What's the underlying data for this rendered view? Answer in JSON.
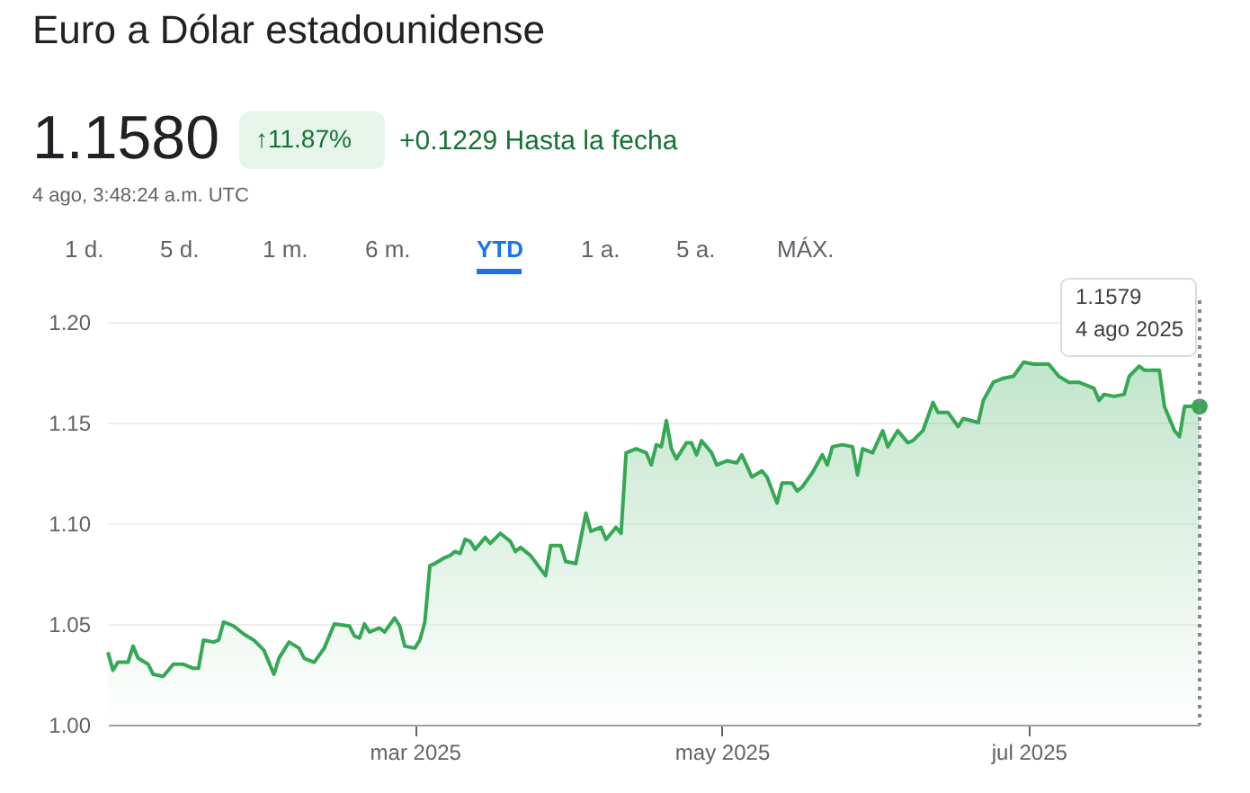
{
  "chart_data": {
    "type": "area",
    "title": "Euro a Dólar estadounidense",
    "x": [
      "2024-12-30",
      "2024-12-31",
      "2025-01-01",
      "2025-01-03",
      "2025-01-04",
      "2025-01-05",
      "2025-01-07",
      "2025-01-08",
      "2025-01-10",
      "2025-01-12",
      "2025-01-14",
      "2025-01-16",
      "2025-01-17",
      "2025-01-18",
      "2025-01-20",
      "2025-01-21",
      "2025-01-22",
      "2025-01-24",
      "2025-01-26",
      "2025-01-28",
      "2025-01-30",
      "2025-02-01",
      "2025-02-02",
      "2025-02-04",
      "2025-02-06",
      "2025-02-07",
      "2025-02-09",
      "2025-02-11",
      "2025-02-13",
      "2025-02-16",
      "2025-02-17",
      "2025-02-18",
      "2025-02-19",
      "2025-02-20",
      "2025-02-22",
      "2025-02-23",
      "2025-02-25",
      "2025-02-26",
      "2025-02-27",
      "2025-03-01",
      "2025-03-02",
      "2025-03-03",
      "2025-03-04",
      "2025-03-05",
      "2025-03-07",
      "2025-03-08",
      "2025-03-09",
      "2025-03-10",
      "2025-03-11",
      "2025-03-12",
      "2025-03-13",
      "2025-03-15",
      "2025-03-16",
      "2025-03-18",
      "2025-03-20",
      "2025-03-21",
      "2025-03-22",
      "2025-03-24",
      "2025-03-27",
      "2025-03-28",
      "2025-03-30",
      "2025-03-31",
      "2025-04-02",
      "2025-04-04",
      "2025-04-05",
      "2025-04-07",
      "2025-04-08",
      "2025-04-10",
      "2025-04-11",
      "2025-04-12",
      "2025-04-14",
      "2025-04-16",
      "2025-04-17",
      "2025-04-18",
      "2025-04-19",
      "2025-04-20",
      "2025-04-21",
      "2025-04-22",
      "2025-04-24",
      "2025-04-25",
      "2025-04-26",
      "2025-04-27",
      "2025-04-29",
      "2025-04-30",
      "2025-05-02",
      "2025-05-04",
      "2025-05-05",
      "2025-05-07",
      "2025-05-09",
      "2025-05-10",
      "2025-05-12",
      "2025-05-13",
      "2025-05-15",
      "2025-05-16",
      "2025-05-17",
      "2025-05-19",
      "2025-05-21",
      "2025-05-22",
      "2025-05-23",
      "2025-05-25",
      "2025-05-27",
      "2025-05-28",
      "2025-05-29",
      "2025-05-31",
      "2025-06-02",
      "2025-06-03",
      "2025-06-05",
      "2025-06-07",
      "2025-06-08",
      "2025-06-10",
      "2025-06-12",
      "2025-06-13",
      "2025-06-15",
      "2025-06-17",
      "2025-06-18",
      "2025-06-21",
      "2025-06-22",
      "2025-06-24",
      "2025-06-26",
      "2025-06-28",
      "2025-06-30",
      "2025-07-02",
      "2025-07-04",
      "2025-07-05",
      "2025-07-07",
      "2025-07-09",
      "2025-07-11",
      "2025-07-14",
      "2025-07-15",
      "2025-07-16",
      "2025-07-18",
      "2025-07-20",
      "2025-07-21",
      "2025-07-23",
      "2025-07-24",
      "2025-07-27",
      "2025-07-28",
      "2025-07-30",
      "2025-07-31",
      "2025-08-01",
      "2025-08-03",
      "2025-08-04"
    ],
    "series": [
      {
        "color": "#34a853",
        "values": [
          1.036,
          1.027,
          1.031,
          1.031,
          1.039,
          1.033,
          1.03,
          1.025,
          1.024,
          1.03,
          1.03,
          1.028,
          1.028,
          1.042,
          1.041,
          1.042,
          1.051,
          1.049,
          1.045,
          1.042,
          1.037,
          1.025,
          1.033,
          1.041,
          1.038,
          1.033,
          1.031,
          1.038,
          1.05,
          1.049,
          1.044,
          1.043,
          1.05,
          1.046,
          1.048,
          1.046,
          1.053,
          1.049,
          1.039,
          1.038,
          1.042,
          1.051,
          1.079,
          1.08,
          1.083,
          1.084,
          1.086,
          1.085,
          1.092,
          1.091,
          1.087,
          1.093,
          1.09,
          1.095,
          1.091,
          1.086,
          1.088,
          1.084,
          1.074,
          1.089,
          1.089,
          1.081,
          1.08,
          1.105,
          1.096,
          1.098,
          1.092,
          1.098,
          1.095,
          1.135,
          1.137,
          1.135,
          1.129,
          1.139,
          1.138,
          1.151,
          1.137,
          1.132,
          1.14,
          1.14,
          1.134,
          1.141,
          1.135,
          1.129,
          1.131,
          1.13,
          1.134,
          1.123,
          1.126,
          1.123,
          1.11,
          1.12,
          1.12,
          1.116,
          1.118,
          1.125,
          1.134,
          1.129,
          1.138,
          1.139,
          1.138,
          1.124,
          1.137,
          1.135,
          1.146,
          1.138,
          1.146,
          1.14,
          1.141,
          1.146,
          1.16,
          1.155,
          1.155,
          1.148,
          1.152,
          1.15,
          1.161,
          1.17,
          1.172,
          1.173,
          1.18,
          1.179,
          1.179,
          1.179,
          1.173,
          1.17,
          1.17,
          1.167,
          1.161,
          1.164,
          1.163,
          1.164,
          1.173,
          1.178,
          1.176,
          1.176,
          1.158,
          1.146,
          1.143,
          1.158,
          1.158,
          1.158
        ]
      }
    ],
    "xlim": [
      "2024-12-30",
      "2025-08-04"
    ],
    "xticks": [
      {
        "value": "2025-03-01",
        "label": "mar 2025"
      },
      {
        "value": "2025-05-01",
        "label": "may 2025"
      },
      {
        "value": "2025-07-01",
        "label": "jul 2025"
      }
    ],
    "ylim": [
      1.0,
      1.2
    ],
    "yticks": [
      {
        "value": 1.0,
        "label": "1.00"
      },
      {
        "value": 1.05,
        "label": "1.05"
      },
      {
        "value": 1.1,
        "label": "1.10"
      },
      {
        "value": 1.15,
        "label": "1.15"
      },
      {
        "value": 1.2,
        "label": "1.20"
      }
    ],
    "grid": "y",
    "marker": "none",
    "line_style": "solid",
    "ref_lines": [
      {
        "axis": "x",
        "value": "2025-08-04",
        "color": "#80868b",
        "line_style": "dotted"
      }
    ],
    "annotations": [
      "1.1580",
      "↑11.87%",
      "+0.1229 Hasta la fecha",
      "4 ago, 3:48:24 a.m. UTC",
      "1 d.",
      "5 d.",
      "1 m.",
      "6 m.",
      "YTD",
      "1 a.",
      "5 a.",
      "MÁX.",
      "1.1579\n4 ago 2025"
    ]
  }
}
